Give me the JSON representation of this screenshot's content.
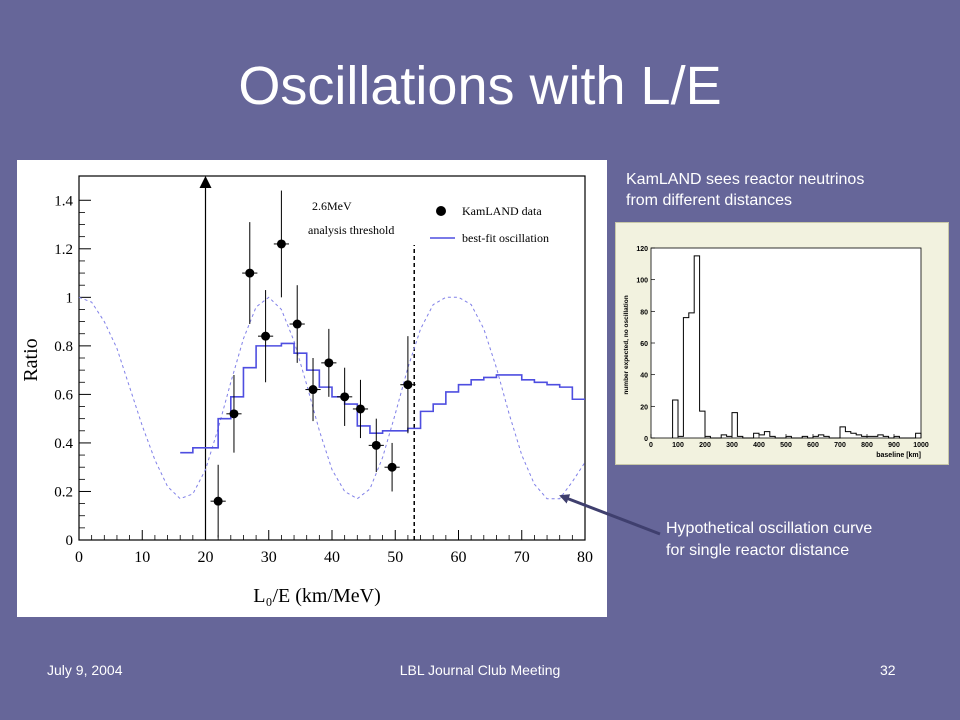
{
  "slide": {
    "title": "Oscillations with L/E",
    "footer_left": "July 9, 2004",
    "footer_center": "LBL Journal Club Meeting",
    "footer_right": "32"
  },
  "inset_caption": [
    "KamLAND sees reactor neutrinos",
    "from different distances"
  ],
  "hyp_caption": [
    "Hypothetical oscillation curve",
    "for single reactor distance"
  ],
  "colors": {
    "background": "#666699",
    "arrow": "#3f3f6e",
    "best_fit": "#4e4ee0",
    "hypothetical": "#8080e8"
  },
  "chart_data": [
    {
      "type": "scatter",
      "xlabel": "L₀/E (km/MeV)",
      "ylabel": "Ratio",
      "xlim": [
        0,
        80
      ],
      "ylim": [
        0,
        1.5
      ],
      "x_ticks": [
        0,
        10,
        20,
        30,
        40,
        50,
        60,
        70,
        80
      ],
      "y_ticks": [
        0,
        0.2,
        0.4,
        0.6,
        0.8,
        1,
        1.2,
        1.4
      ],
      "y_tick_labels": [
        "0",
        "0.2",
        "0.4",
        "0.6",
        "0.8",
        "1",
        "1.2",
        "1.4"
      ],
      "threshold_label_lines": [
        "2.6MeV",
        "analysis threshold"
      ],
      "threshold_x": 20,
      "cutoff_x": 53,
      "legend": {
        "placement": "top-right",
        "entries": [
          "KamLAND data",
          "best-fit oscillation"
        ]
      },
      "series": [
        {
          "name": "KamLAND data",
          "style": "points",
          "points": [
            {
              "x": 22,
              "y": 0.16,
              "err": 0.15
            },
            {
              "x": 24.5,
              "y": 0.52,
              "err": 0.16
            },
            {
              "x": 27,
              "y": 1.1,
              "err": 0.21
            },
            {
              "x": 29.5,
              "y": 0.84,
              "err": 0.19
            },
            {
              "x": 32,
              "y": 1.22,
              "err": 0.22
            },
            {
              "x": 34.5,
              "y": 0.89,
              "err": 0.16
            },
            {
              "x": 37,
              "y": 0.62,
              "err": 0.13
            },
            {
              "x": 39.5,
              "y": 0.73,
              "err": 0.14
            },
            {
              "x": 42,
              "y": 0.59,
              "err": 0.12
            },
            {
              "x": 44.5,
              "y": 0.54,
              "err": 0.12
            },
            {
              "x": 47,
              "y": 0.39,
              "err": 0.11
            },
            {
              "x": 49.5,
              "y": 0.3,
              "err": 0.1
            },
            {
              "x": 52,
              "y": 0.64,
              "err": 0.2
            }
          ]
        },
        {
          "name": "best-fit oscillation",
          "style": "step",
          "edges": [
            16,
            18,
            20,
            22,
            24,
            26,
            28,
            30,
            32,
            34,
            36,
            38,
            40,
            42,
            44,
            46,
            48,
            50,
            52,
            54,
            56,
            58,
            60,
            62,
            64,
            66,
            68,
            70,
            72,
            74,
            76,
            78,
            80
          ],
          "values": [
            0.36,
            0.38,
            0.38,
            0.5,
            0.59,
            0.71,
            0.8,
            0.8,
            0.81,
            0.77,
            0.7,
            0.63,
            0.59,
            0.56,
            0.47,
            0.44,
            0.45,
            0.45,
            0.46,
            0.53,
            0.56,
            0.61,
            0.64,
            0.66,
            0.67,
            0.68,
            0.68,
            0.66,
            0.65,
            0.64,
            0.63,
            0.58
          ]
        },
        {
          "name": "hypothetical single-distance oscillation",
          "style": "dashed-curve",
          "x": [
            0,
            2,
            4,
            6,
            8,
            10,
            12,
            14,
            16,
            18,
            20,
            22,
            24,
            26,
            28,
            30,
            32,
            34,
            36,
            38,
            40,
            42,
            44,
            46,
            48,
            50,
            52,
            54,
            56,
            58,
            60,
            62,
            64,
            66,
            68,
            70,
            72,
            74,
            76,
            78,
            80
          ],
          "y": [
            1.0,
            0.98,
            0.9,
            0.79,
            0.63,
            0.47,
            0.33,
            0.22,
            0.17,
            0.19,
            0.29,
            0.46,
            0.65,
            0.83,
            0.96,
            1.0,
            0.95,
            0.82,
            0.64,
            0.45,
            0.29,
            0.2,
            0.17,
            0.21,
            0.34,
            0.52,
            0.71,
            0.87,
            0.97,
            1.0,
            1.0,
            0.97,
            0.87,
            0.71,
            0.52,
            0.35,
            0.23,
            0.17,
            0.17,
            0.24,
            0.32
          ]
        }
      ]
    },
    {
      "type": "bar",
      "xlabel": "baseline [km]",
      "ylabel": "number expected, no oscillation",
      "xlim": [
        0,
        1000
      ],
      "ylim": [
        0,
        120
      ],
      "x_ticks": [
        0,
        100,
        200,
        300,
        400,
        500,
        600,
        700,
        800,
        900,
        1000
      ],
      "y_ticks": [
        0,
        20,
        40,
        60,
        80,
        100,
        120
      ],
      "bin_width": 20,
      "bin_starts": [
        80,
        100,
        120,
        140,
        160,
        180,
        200,
        220,
        240,
        260,
        280,
        300,
        320,
        340,
        360,
        380,
        400,
        420,
        440,
        460,
        480,
        500,
        520,
        540,
        560,
        580,
        600,
        620,
        640,
        660,
        680,
        700,
        720,
        740,
        760,
        780,
        800,
        820,
        840,
        860,
        880,
        900,
        920,
        940,
        960,
        980
      ],
      "values": [
        24,
        1,
        76,
        79,
        115,
        17,
        1,
        0,
        0,
        2,
        1,
        16,
        1,
        0,
        0,
        3,
        2,
        4,
        1,
        0,
        0,
        1,
        0,
        0,
        1,
        0,
        1,
        2,
        1,
        0,
        0,
        7,
        4,
        3,
        2,
        1,
        1,
        1,
        2,
        1,
        0,
        1,
        0,
        0,
        0,
        3
      ]
    }
  ]
}
